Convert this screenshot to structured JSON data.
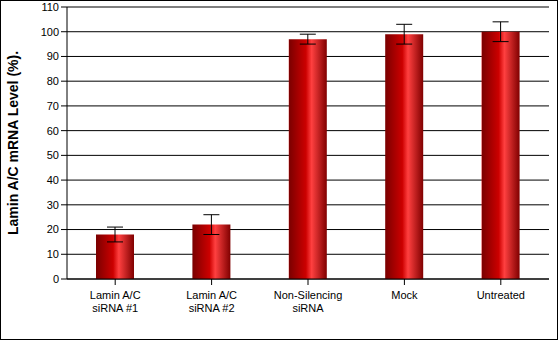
{
  "chart_data": {
    "type": "bar",
    "categories": [
      "Lamin A/C siRNA #1",
      "Lamin A/C siRNA #2",
      "Non-Silencing siRNA",
      "Mock",
      "Untreated"
    ],
    "values": [
      18,
      22,
      97,
      99,
      100
    ],
    "errors": [
      3,
      4,
      2,
      4,
      4
    ],
    "color": "#cc0000",
    "y_label": "Lamin A/C mRNA Level (%).",
    "ylim": [
      0,
      110
    ],
    "yticks": [
      0,
      10,
      20,
      30,
      40,
      50,
      60,
      70,
      80,
      90,
      100,
      110
    ],
    "grid": true
  }
}
